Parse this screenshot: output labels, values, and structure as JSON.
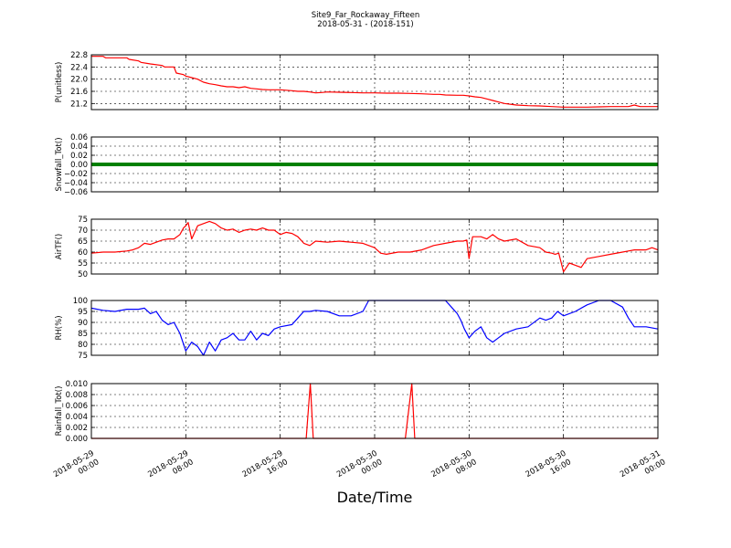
{
  "chart_data": {
    "type": "line",
    "title": "Site9_Far_Rockaway_Fifteen",
    "subtitle": "2018-05-31 - (2018-151)",
    "xlabel": "Date/Time",
    "x_ticks": [
      {
        "line1": "2018-05-29",
        "line2": "00:00",
        "hour": 0
      },
      {
        "line1": "2018-05-29",
        "line2": "08:00",
        "hour": 8
      },
      {
        "line1": "2018-05-29",
        "line2": "16:00",
        "hour": 16
      },
      {
        "line1": "2018-05-30",
        "line2": "00:00",
        "hour": 24
      },
      {
        "line1": "2018-05-30",
        "line2": "08:00",
        "hour": 32
      },
      {
        "line1": "2018-05-30",
        "line2": "16:00",
        "hour": 40
      },
      {
        "line1": "2018-05-31",
        "line2": "00:00",
        "hour": 48
      }
    ],
    "xlim_hours": [
      0,
      48
    ],
    "grid": true,
    "panels": [
      {
        "ylabel": "P(unitless)",
        "color": "#ff0000",
        "ylim": [
          21.0,
          22.8
        ],
        "yticks": [
          "21.2",
          "21.6",
          "22.0",
          "22.4",
          "22.8"
        ],
        "ytick_values": [
          21.2,
          21.6,
          22.0,
          22.4,
          22.8
        ],
        "x": [
          0,
          1,
          1.2,
          2,
          3,
          3.2,
          4,
          4.2,
          5,
          6,
          6.2,
          7,
          7.2,
          7.8,
          8,
          8.5,
          9,
          9.5,
          10,
          10.5,
          11,
          11.5,
          12,
          12.5,
          13,
          13.5,
          14,
          14.5,
          15,
          16,
          17,
          17.5,
          18,
          18.5,
          19,
          19.5,
          20,
          21,
          22,
          23,
          24,
          25,
          26,
          27,
          28,
          29,
          29.5,
          30,
          31,
          31.5,
          32,
          32.5,
          33,
          33.5,
          34,
          34.5,
          35,
          36,
          37,
          38,
          39,
          40,
          41,
          42,
          43,
          44,
          45,
          45.5,
          46,
          46.5,
          47,
          48
        ],
        "y": [
          22.75,
          22.75,
          22.7,
          22.7,
          22.7,
          22.65,
          22.6,
          22.55,
          22.5,
          22.45,
          22.4,
          22.4,
          22.2,
          22.15,
          22.1,
          22.05,
          22.0,
          21.9,
          21.85,
          21.82,
          21.78,
          21.75,
          21.75,
          21.72,
          21.75,
          21.7,
          21.68,
          21.66,
          21.65,
          21.65,
          21.62,
          21.6,
          21.6,
          21.58,
          21.55,
          21.56,
          21.58,
          21.57,
          21.56,
          21.55,
          21.55,
          21.54,
          21.54,
          21.53,
          21.52,
          21.5,
          21.5,
          21.48,
          21.47,
          21.47,
          21.45,
          21.42,
          21.4,
          21.35,
          21.3,
          21.25,
          21.2,
          21.15,
          21.13,
          21.12,
          21.1,
          21.08,
          21.08,
          21.08,
          21.09,
          21.1,
          21.1,
          21.1,
          21.15,
          21.1,
          21.1,
          21.1
        ]
      },
      {
        "ylabel": "Snowfall_Tot()",
        "color": "#008000",
        "ylim": [
          -0.06,
          0.06
        ],
        "yticks": [
          "−0.06",
          "−0.04",
          "−0.02",
          "0.00",
          "0.02",
          "0.04",
          "0.06"
        ],
        "ytick_values": [
          -0.06,
          -0.04,
          -0.02,
          0.0,
          0.02,
          0.04,
          0.06
        ],
        "x": [
          0,
          48
        ],
        "y": [
          0,
          0
        ]
      },
      {
        "ylabel": "AirTF()",
        "color": "#ff0000",
        "ylim": [
          50,
          75
        ],
        "yticks": [
          "50",
          "55",
          "60",
          "65",
          "70",
          "75"
        ],
        "ytick_values": [
          50,
          55,
          60,
          65,
          70,
          75
        ],
        "x": [
          0,
          1,
          2,
          3,
          3.5,
          4,
          4.5,
          5,
          6,
          6.5,
          7,
          7.5,
          7.8,
          8,
          8.2,
          8.5,
          9,
          9.5,
          10,
          10.5,
          11,
          11.5,
          12,
          12.5,
          13,
          13.5,
          14,
          14.5,
          15,
          15.5,
          16,
          16.5,
          17,
          17.5,
          18,
          18.5,
          19,
          20,
          21,
          22,
          23,
          24,
          24.5,
          25,
          26,
          27,
          28,
          29,
          30,
          31,
          31.5,
          31.8,
          32,
          32.3,
          33,
          33.5,
          34,
          34.5,
          35,
          36,
          37,
          38,
          38.5,
          39,
          39.3,
          39.6,
          40,
          40.5,
          41,
          41.5,
          42,
          43,
          44,
          45,
          45.5,
          46,
          47,
          47.5,
          48
        ],
        "y": [
          59.5,
          60,
          60,
          60.5,
          61,
          62,
          64,
          63.5,
          65.5,
          66,
          66,
          68,
          71,
          72,
          73.5,
          66,
          72,
          73,
          74,
          73,
          71,
          70,
          70.5,
          69,
          70,
          70.5,
          70,
          71,
          70,
          70,
          68,
          69,
          68.5,
          67,
          64,
          63,
          65,
          64.5,
          65,
          64.5,
          64,
          62,
          59.5,
          59,
          60,
          60,
          61,
          63,
          64,
          65,
          65,
          65.5,
          57,
          67,
          67,
          66,
          68,
          66,
          65,
          66,
          63,
          62,
          60,
          59.5,
          59,
          59.5,
          51,
          55,
          54,
          53,
          57,
          58,
          59,
          60,
          60.5,
          61,
          61,
          62,
          61
        ]
      },
      {
        "ylabel": "RH(%)",
        "color": "#0000ff",
        "ylim": [
          75,
          100
        ],
        "yticks": [
          "75",
          "80",
          "85",
          "90",
          "95",
          "100"
        ],
        "ytick_values": [
          75,
          80,
          85,
          90,
          95,
          100
        ],
        "x": [
          0,
          1,
          2,
          3,
          4,
          4.5,
          5,
          5.5,
          6,
          6.5,
          7,
          7.5,
          8,
          8.5,
          9,
          9.5,
          10,
          10.5,
          11,
          11.5,
          12,
          12.5,
          13,
          13.5,
          14,
          14.5,
          15,
          15.5,
          16,
          17,
          17.5,
          18,
          18.5,
          19,
          20,
          21,
          22,
          23,
          23.5,
          24,
          25,
          26,
          27,
          28,
          29,
          30,
          30.5,
          31,
          31.3,
          31.6,
          32,
          32.5,
          33,
          33.5,
          34,
          34.5,
          35,
          36,
          37,
          38,
          38.5,
          39,
          39.5,
          40,
          41,
          42,
          43,
          44,
          45,
          45.5,
          46,
          47,
          48
        ],
        "y": [
          96.5,
          95.5,
          95,
          96,
          96,
          96.5,
          94,
          95,
          91,
          89,
          90,
          85,
          77,
          81,
          79,
          75,
          81,
          77,
          82,
          83,
          85,
          82,
          82,
          86,
          82,
          85,
          84,
          87,
          88,
          89,
          92,
          95,
          95,
          95.5,
          95,
          93,
          93,
          95,
          100,
          100,
          100,
          100,
          100,
          100,
          100,
          100,
          97,
          94,
          91,
          87,
          83,
          86,
          88,
          83,
          81,
          83,
          85,
          87,
          88,
          92,
          91,
          92,
          95,
          93,
          95,
          98,
          100,
          100,
          97,
          92,
          88,
          88,
          87
        ]
      },
      {
        "ylabel": "Rainfall_Tot()",
        "color": "#ff0000",
        "ylim": [
          0.0,
          0.01
        ],
        "yticks": [
          "0.000",
          "0.002",
          "0.004",
          "0.006",
          "0.008",
          "0.010"
        ],
        "ytick_values": [
          0.0,
          0.002,
          0.004,
          0.006,
          0.008,
          0.01
        ],
        "x": [
          0,
          18.2,
          18.55,
          18.8,
          26.6,
          27.15,
          27.4,
          48
        ],
        "y": [
          0,
          0,
          0.01,
          0,
          0,
          0.01,
          0,
          0
        ]
      }
    ]
  }
}
